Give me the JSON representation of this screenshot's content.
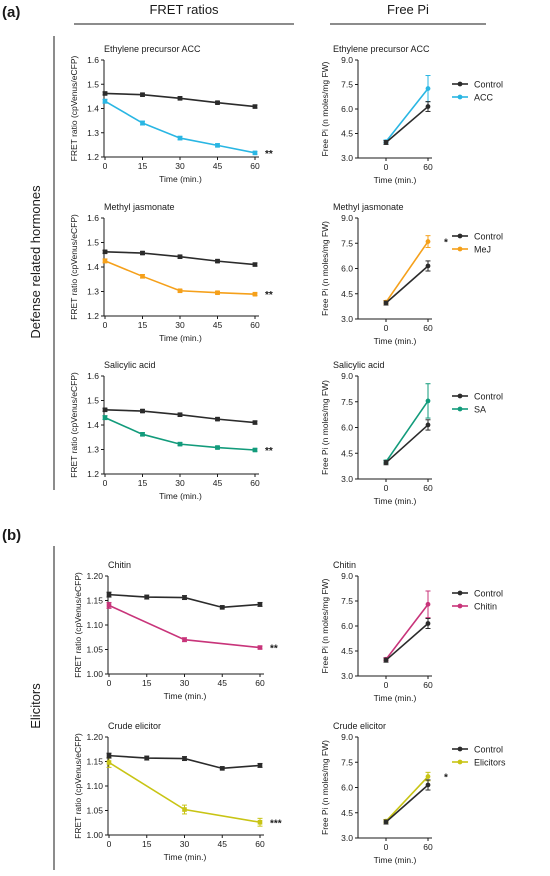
{
  "headers": {
    "panel_a": "(a)",
    "panel_b": "(b)",
    "fret_ratios": "FRET ratios",
    "free_pi": "Free Pi",
    "defense_label": "Defense related hormones",
    "elicitors_label": "Elicitors"
  },
  "colors": {
    "control": "#2b2b2b",
    "acc": "#29b6e3",
    "mej": "#f5a01a",
    "sa": "#129b7b",
    "chitin": "#c8347a",
    "elicitors": "#c8c414"
  },
  "chart_data": [
    {
      "type": "line",
      "title": "Ethylene precursor ACC",
      "xlabel": "Time (min.)",
      "ylabel": "FRET ratio (cpVenus/eCFP)",
      "x": [
        0,
        15,
        30,
        45,
        60
      ],
      "xticks": [
        "0",
        "15",
        "30",
        "45",
        "60"
      ],
      "ylim": [
        1.2,
        1.6
      ],
      "yticks": [
        "1.2",
        "1.3",
        "1.4",
        "1.5",
        "1.6"
      ],
      "series": [
        {
          "values": [
            1.462,
            1.457,
            1.442,
            1.424,
            1.408
          ],
          "errors": [
            0.006,
            0.006,
            0.006,
            0.005,
            0.006
          ],
          "color_key": "control"
        },
        {
          "values": [
            1.43,
            1.34,
            1.278,
            1.248,
            1.217
          ],
          "errors": [
            0.008,
            0.008,
            0.007,
            0.006,
            0.005
          ],
          "color_key": "acc"
        }
      ],
      "annotation": "**"
    },
    {
      "type": "line",
      "title": "Ethylene precursor ACC",
      "xlabel": "Time (min.)",
      "ylabel": "Free Pi (n moles/mg FW)",
      "x": [
        0,
        60
      ],
      "xticks": [
        "0",
        "60"
      ],
      "ylim": [
        3.0,
        9.0
      ],
      "yticks": [
        "3.0",
        "4.5",
        "6.0",
        "7.5",
        "9.0"
      ],
      "series": [
        {
          "name": "Control",
          "values": [
            3.95,
            6.15
          ],
          "errors": [
            0.12,
            0.3
          ],
          "color_key": "control"
        },
        {
          "name": "ACC",
          "values": [
            4.0,
            7.25
          ],
          "errors": [
            0.1,
            0.8
          ],
          "color_key": "acc"
        }
      ],
      "legend": "right"
    },
    {
      "type": "line",
      "title": "Methyl jasmonate",
      "xlabel": "Time (min.)",
      "ylabel": "FRET ratio (cpVenus/eCFP)",
      "x": [
        0,
        15,
        30,
        45,
        60
      ],
      "xticks": [
        "0",
        "15",
        "30",
        "45",
        "60"
      ],
      "ylim": [
        1.2,
        1.6
      ],
      "yticks": [
        "1.2",
        "1.3",
        "1.4",
        "1.5",
        "1.6"
      ],
      "series": [
        {
          "values": [
            1.462,
            1.457,
            1.442,
            1.424,
            1.41
          ],
          "errors": [
            0.006,
            0.006,
            0.006,
            0.005,
            0.006
          ],
          "color_key": "control"
        },
        {
          "values": [
            1.425,
            1.362,
            1.303,
            1.295,
            1.289
          ],
          "errors": [
            0.008,
            0.007,
            0.005,
            0.005,
            0.005
          ],
          "color_key": "mej"
        }
      ],
      "annotation": "**"
    },
    {
      "type": "line",
      "title": "Methyl jasmonate",
      "xlabel": "Time (min.)",
      "ylabel": "Free Pi (n moles/mg FW)",
      "x": [
        0,
        60
      ],
      "xticks": [
        "0",
        "60"
      ],
      "ylim": [
        3.0,
        9.0
      ],
      "yticks": [
        "3.0",
        "4.5",
        "6.0",
        "7.5",
        "9.0"
      ],
      "series": [
        {
          "name": "Control",
          "values": [
            3.95,
            6.15
          ],
          "errors": [
            0.12,
            0.3
          ],
          "color_key": "control"
        },
        {
          "name": "MeJ",
          "values": [
            4.0,
            7.6
          ],
          "errors": [
            0.1,
            0.35
          ],
          "color_key": "mej"
        }
      ],
      "legend": "right",
      "annotation": "*"
    },
    {
      "type": "line",
      "title": "Salicylic acid",
      "xlabel": "Time (min.)",
      "ylabel": "FRET ratio (cpVenus/eCFP)",
      "x": [
        0,
        15,
        30,
        45,
        60
      ],
      "xticks": [
        "0",
        "15",
        "30",
        "45",
        "60"
      ],
      "ylim": [
        1.2,
        1.6
      ],
      "yticks": [
        "1.2",
        "1.3",
        "1.4",
        "1.5",
        "1.6"
      ],
      "series": [
        {
          "values": [
            1.462,
            1.457,
            1.442,
            1.424,
            1.41
          ],
          "errors": [
            0.006,
            0.006,
            0.006,
            0.005,
            0.006
          ],
          "color_key": "control"
        },
        {
          "values": [
            1.43,
            1.362,
            1.322,
            1.308,
            1.298
          ],
          "errors": [
            0.008,
            0.006,
            0.006,
            0.005,
            0.005
          ],
          "color_key": "sa"
        }
      ],
      "annotation": "**"
    },
    {
      "type": "line",
      "title": "Salicylic acid",
      "xlabel": "Time (min.)",
      "ylabel": "Free Pi (n moles/mg FW)",
      "x": [
        0,
        60
      ],
      "xticks": [
        "0",
        "60"
      ],
      "ylim": [
        3.0,
        9.0
      ],
      "yticks": [
        "3.0",
        "4.5",
        "6.0",
        "7.5",
        "9.0"
      ],
      "series": [
        {
          "name": "Control",
          "values": [
            3.95,
            6.15
          ],
          "errors": [
            0.12,
            0.3
          ],
          "color_key": "control"
        },
        {
          "name": "SA",
          "values": [
            4.0,
            7.55
          ],
          "errors": [
            0.1,
            1.0
          ],
          "color_key": "sa"
        }
      ],
      "legend": "right"
    },
    {
      "type": "line",
      "title": "Chitin",
      "xlabel": "Time (min.)",
      "ylabel": "FRET ratio (cpVenus/eCFP)",
      "x": [
        0,
        15,
        30,
        45,
        60
      ],
      "xticks": [
        "0",
        "15",
        "30",
        "45",
        "60"
      ],
      "ylim": [
        1.0,
        1.2
      ],
      "yticks": [
        "1.00",
        "1.05",
        "1.10",
        "1.15",
        "1.20"
      ],
      "control_x": [
        0,
        15,
        30,
        45,
        60
      ],
      "series": [
        {
          "x": [
            0,
            15,
            30,
            45,
            60
          ],
          "values": [
            1.162,
            1.157,
            1.156,
            1.136,
            1.142
          ],
          "errors": [
            0.005,
            0.004,
            0.004,
            0.003,
            0.004
          ],
          "color_key": "control"
        },
        {
          "x": [
            0,
            30,
            60
          ],
          "values": [
            1.14,
            1.07,
            1.054
          ],
          "errors": [
            0.006,
            0.004,
            0.003
          ],
          "color_key": "chitin"
        }
      ],
      "annotation": "**"
    },
    {
      "type": "line",
      "title": "Chitin",
      "xlabel": "Time (min.)",
      "ylabel": "Free Pi (n moles/mg FW)",
      "x": [
        0,
        60
      ],
      "xticks": [
        "0",
        "60"
      ],
      "ylim": [
        3.0,
        9.0
      ],
      "yticks": [
        "3.0",
        "4.5",
        "6.0",
        "7.5",
        "9.0"
      ],
      "series": [
        {
          "name": "Control",
          "values": [
            3.95,
            6.15
          ],
          "errors": [
            0.12,
            0.3
          ],
          "color_key": "control"
        },
        {
          "name": "Chitin",
          "values": [
            4.0,
            7.3
          ],
          "errors": [
            0.1,
            0.8
          ],
          "color_key": "chitin"
        }
      ],
      "legend": "right"
    },
    {
      "type": "line",
      "title": "Crude elicitor",
      "xlabel": "Time (min.)",
      "ylabel": "FRET ratio (cpVenus/eCFP)",
      "x": [
        0,
        15,
        30,
        45,
        60
      ],
      "xticks": [
        "0",
        "15",
        "30",
        "45",
        "60"
      ],
      "ylim": [
        1.0,
        1.2
      ],
      "yticks": [
        "1.00",
        "1.05",
        "1.10",
        "1.15",
        "1.20"
      ],
      "series": [
        {
          "x": [
            0,
            15,
            30,
            45,
            60
          ],
          "values": [
            1.162,
            1.157,
            1.156,
            1.136,
            1.142
          ],
          "errors": [
            0.005,
            0.004,
            0.004,
            0.003,
            0.004
          ],
          "color_key": "control"
        },
        {
          "x": [
            0,
            30,
            60
          ],
          "values": [
            1.148,
            1.052,
            1.026
          ],
          "errors": [
            0.01,
            0.009,
            0.008
          ],
          "color_key": "elicitors"
        }
      ],
      "annotation": "***"
    },
    {
      "type": "line",
      "title": "Crude elicitor",
      "xlabel": "Time (min.)",
      "ylabel": "Free Pi (n moles/mg FW)",
      "x": [
        0,
        60
      ],
      "xticks": [
        "0",
        "60"
      ],
      "ylim": [
        3.0,
        9.0
      ],
      "yticks": [
        "3.0",
        "4.5",
        "6.0",
        "7.5",
        "9.0"
      ],
      "series": [
        {
          "name": "Control",
          "values": [
            3.95,
            6.15
          ],
          "errors": [
            0.12,
            0.3
          ],
          "color_key": "control"
        },
        {
          "name": "Elicitors",
          "values": [
            4.0,
            6.65
          ],
          "errors": [
            0.1,
            0.25
          ],
          "color_key": "elicitors"
        }
      ],
      "legend": "right",
      "annotation": "*"
    }
  ]
}
